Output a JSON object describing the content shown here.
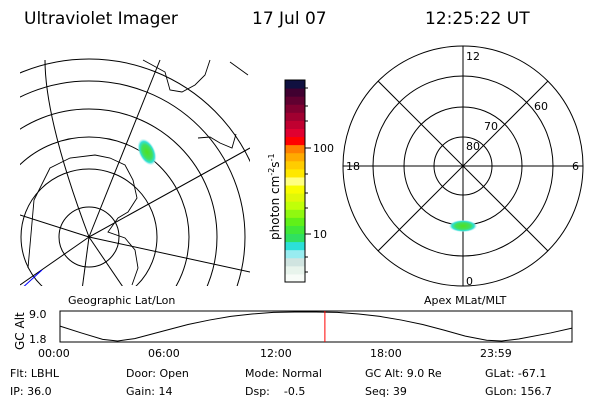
{
  "header": {
    "instrument": "Ultraviolet Imager",
    "date": "17 Jul 07",
    "time": "12:25:22 UT"
  },
  "left_map": {
    "label": "Geographic Lat/Lon"
  },
  "right_map": {
    "label": "Apex MLat/MLT",
    "mlt_labels": [
      "12",
      "18",
      "6",
      "0"
    ],
    "lat_labels": [
      "80",
      "70",
      "60"
    ]
  },
  "colorbar": {
    "label": "photon cm",
    "exp1": "-2",
    "unit2": "s",
    "exp2": "-1",
    "tick_labels": [
      "100",
      "10"
    ],
    "colors": [
      "#f8fcf8",
      "#e8f4ec",
      "#d0e4e0",
      "#98ecf0",
      "#2ce0d8",
      "#30e060",
      "#40e838",
      "#60f018",
      "#90f810",
      "#c0ff08",
      "#e0f808",
      "#f8fc00",
      "#ffff80",
      "#ffe800",
      "#ffcc00",
      "#ffaa00",
      "#ff8000",
      "#ff0000",
      "#e00030",
      "#c00030",
      "#a00030",
      "#800030",
      "#600030",
      "#400030",
      "#101040"
    ]
  },
  "chart_data": {
    "type": "line",
    "ylabel": "GC Alt",
    "yticks": [
      "9.0",
      "1.8"
    ],
    "xticks": [
      "00:00",
      "06:00",
      "12:00",
      "18:00",
      "23:59"
    ],
    "ylim": [
      1.8,
      9.0
    ],
    "x_hours": [
      0,
      1,
      2,
      2.7,
      3.5,
      5,
      6,
      7,
      8,
      9,
      10,
      11,
      12,
      13,
      14,
      15,
      16,
      17,
      18,
      19,
      20,
      20.7,
      21.5,
      23,
      24
    ],
    "series": [
      {
        "values": [
          5.5,
          3.8,
          2.2,
          1.8,
          2.4,
          4.5,
          5.9,
          7.0,
          7.9,
          8.5,
          8.9,
          9.0,
          9.0,
          8.9,
          8.5,
          7.9,
          7.0,
          5.9,
          4.5,
          3.0,
          2.0,
          1.8,
          2.3,
          3.8,
          5.0
        ]
      }
    ],
    "current_time_marker": "12:25"
  },
  "status": {
    "row1": [
      "Flt: LBHL",
      "Door: Open",
      "Mode: Normal",
      "GC Alt: 9.0 Re",
      "GLat: -67.1"
    ],
    "row2": [
      "IP: 36.0",
      "Gain: 14",
      "Dsp:    -0.5",
      "Seq: 39",
      "GLon: 156.7"
    ]
  }
}
